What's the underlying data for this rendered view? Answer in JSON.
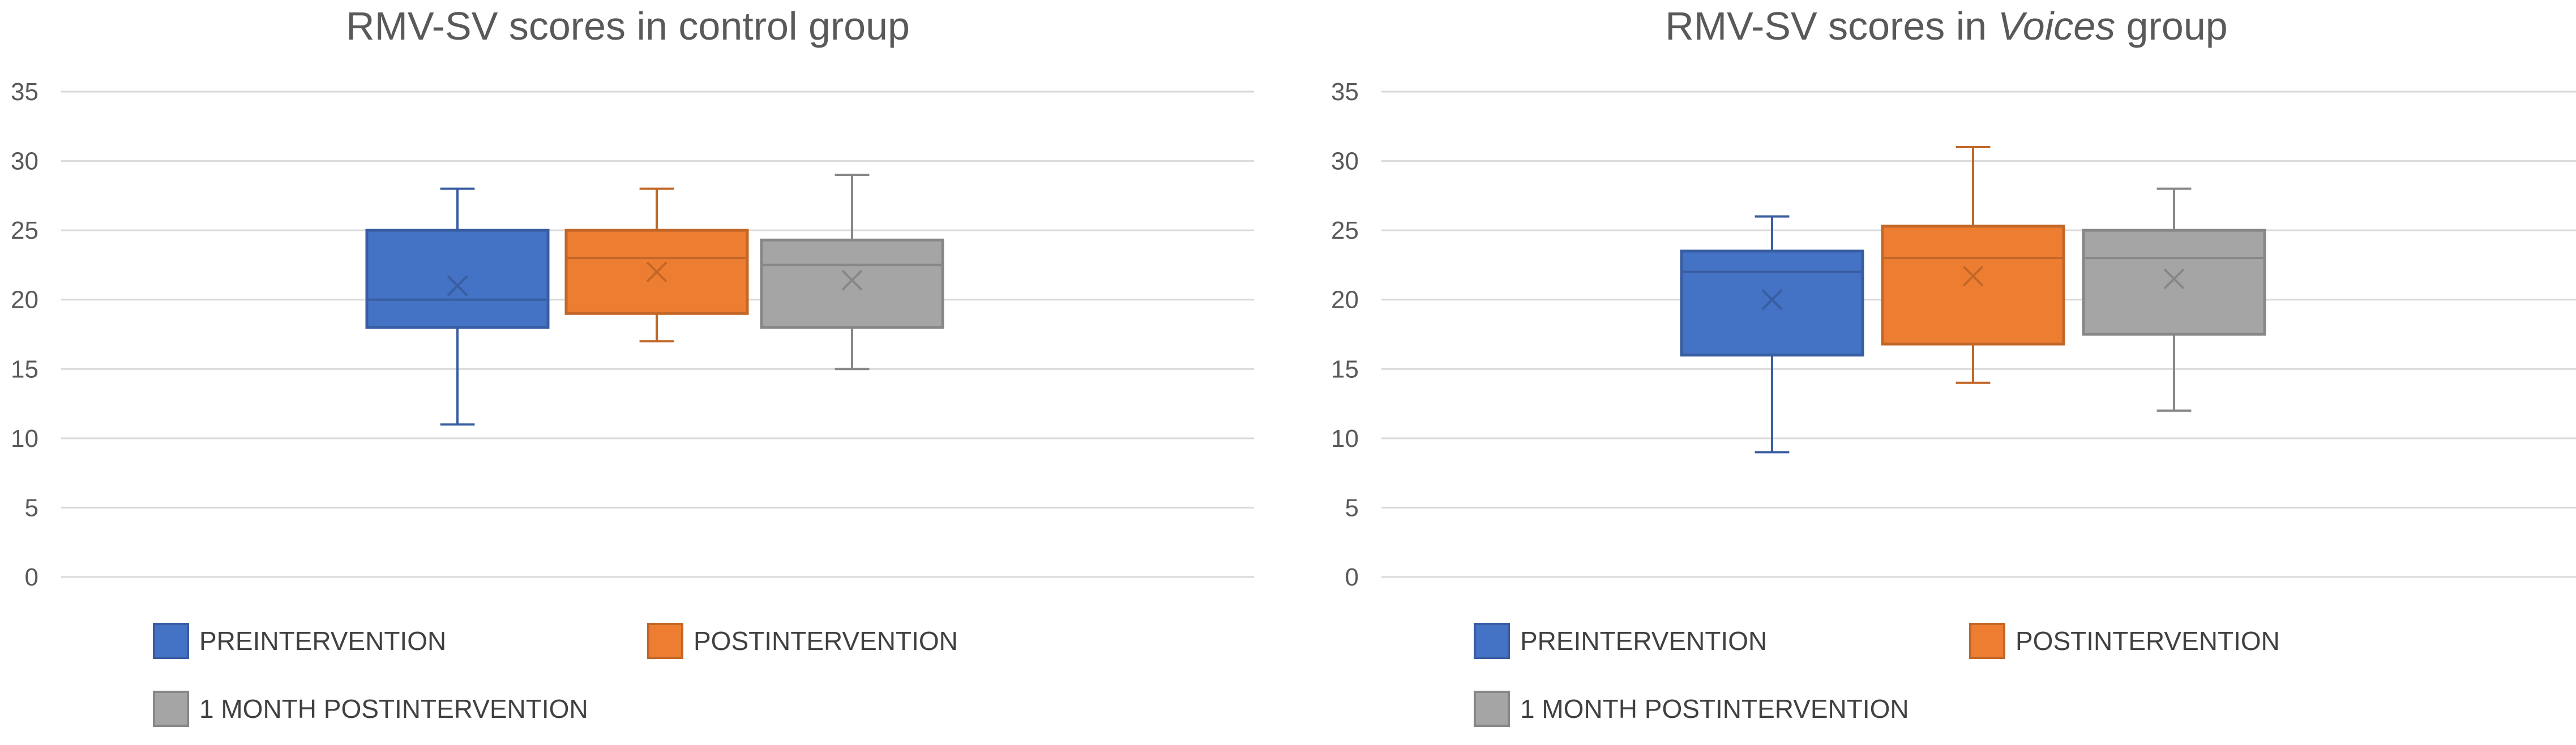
{
  "chart_data": [
    {
      "type": "box",
      "title": "RMV-SV scores in control group",
      "title_parts": [
        {
          "text": "RMV-SV scores in control group",
          "italic": false
        }
      ],
      "ylim": [
        0,
        35
      ],
      "yticks": [
        "0",
        "5",
        "10",
        "15",
        "20",
        "25",
        "30",
        "35"
      ],
      "grid": "horizontal",
      "legend_position": "bottom",
      "series": [
        {
          "name": "PREINTERVENTION",
          "color": "#4472C4",
          "min": 11,
          "q1": 18,
          "median": 20,
          "q3": 25,
          "max": 28,
          "mean": 21
        },
        {
          "name": "POSTINTERVENTION",
          "color": "#ED7D31",
          "min": 17,
          "q1": 19,
          "median": 23,
          "q3": 25,
          "max": 28,
          "mean": 22
        },
        {
          "name": "1 MONTH POSTINTERVENTION",
          "color": "#A5A5A5",
          "min": 15,
          "q1": 18,
          "median": 22.5,
          "q3": 24.3,
          "max": 29,
          "mean": 21.4
        }
      ]
    },
    {
      "type": "box",
      "title": "RMV-SV scores in Voices group",
      "title_parts": [
        {
          "text": "RMV-SV scores in ",
          "italic": false
        },
        {
          "text": "Voices",
          "italic": true
        },
        {
          "text": " group",
          "italic": false
        }
      ],
      "ylim": [
        0,
        35
      ],
      "yticks": [
        "0",
        "5",
        "10",
        "15",
        "20",
        "25",
        "30",
        "35"
      ],
      "grid": "horizontal",
      "legend_position": "bottom",
      "series": [
        {
          "name": "PREINTERVENTION",
          "color": "#4472C4",
          "min": 9,
          "q1": 16,
          "median": 22,
          "q3": 23.5,
          "max": 26,
          "mean": 20
        },
        {
          "name": "POSTINTERVENTION",
          "color": "#ED7D31",
          "min": 14,
          "q1": 16.8,
          "median": 23,
          "q3": 25.3,
          "max": 31,
          "mean": 21.7
        },
        {
          "name": "1 MONTH POSTINTERVENTION",
          "color": "#A5A5A5",
          "min": 12,
          "q1": 17.5,
          "median": 23,
          "q3": 25,
          "max": 28,
          "mean": 21.5
        }
      ]
    }
  ]
}
